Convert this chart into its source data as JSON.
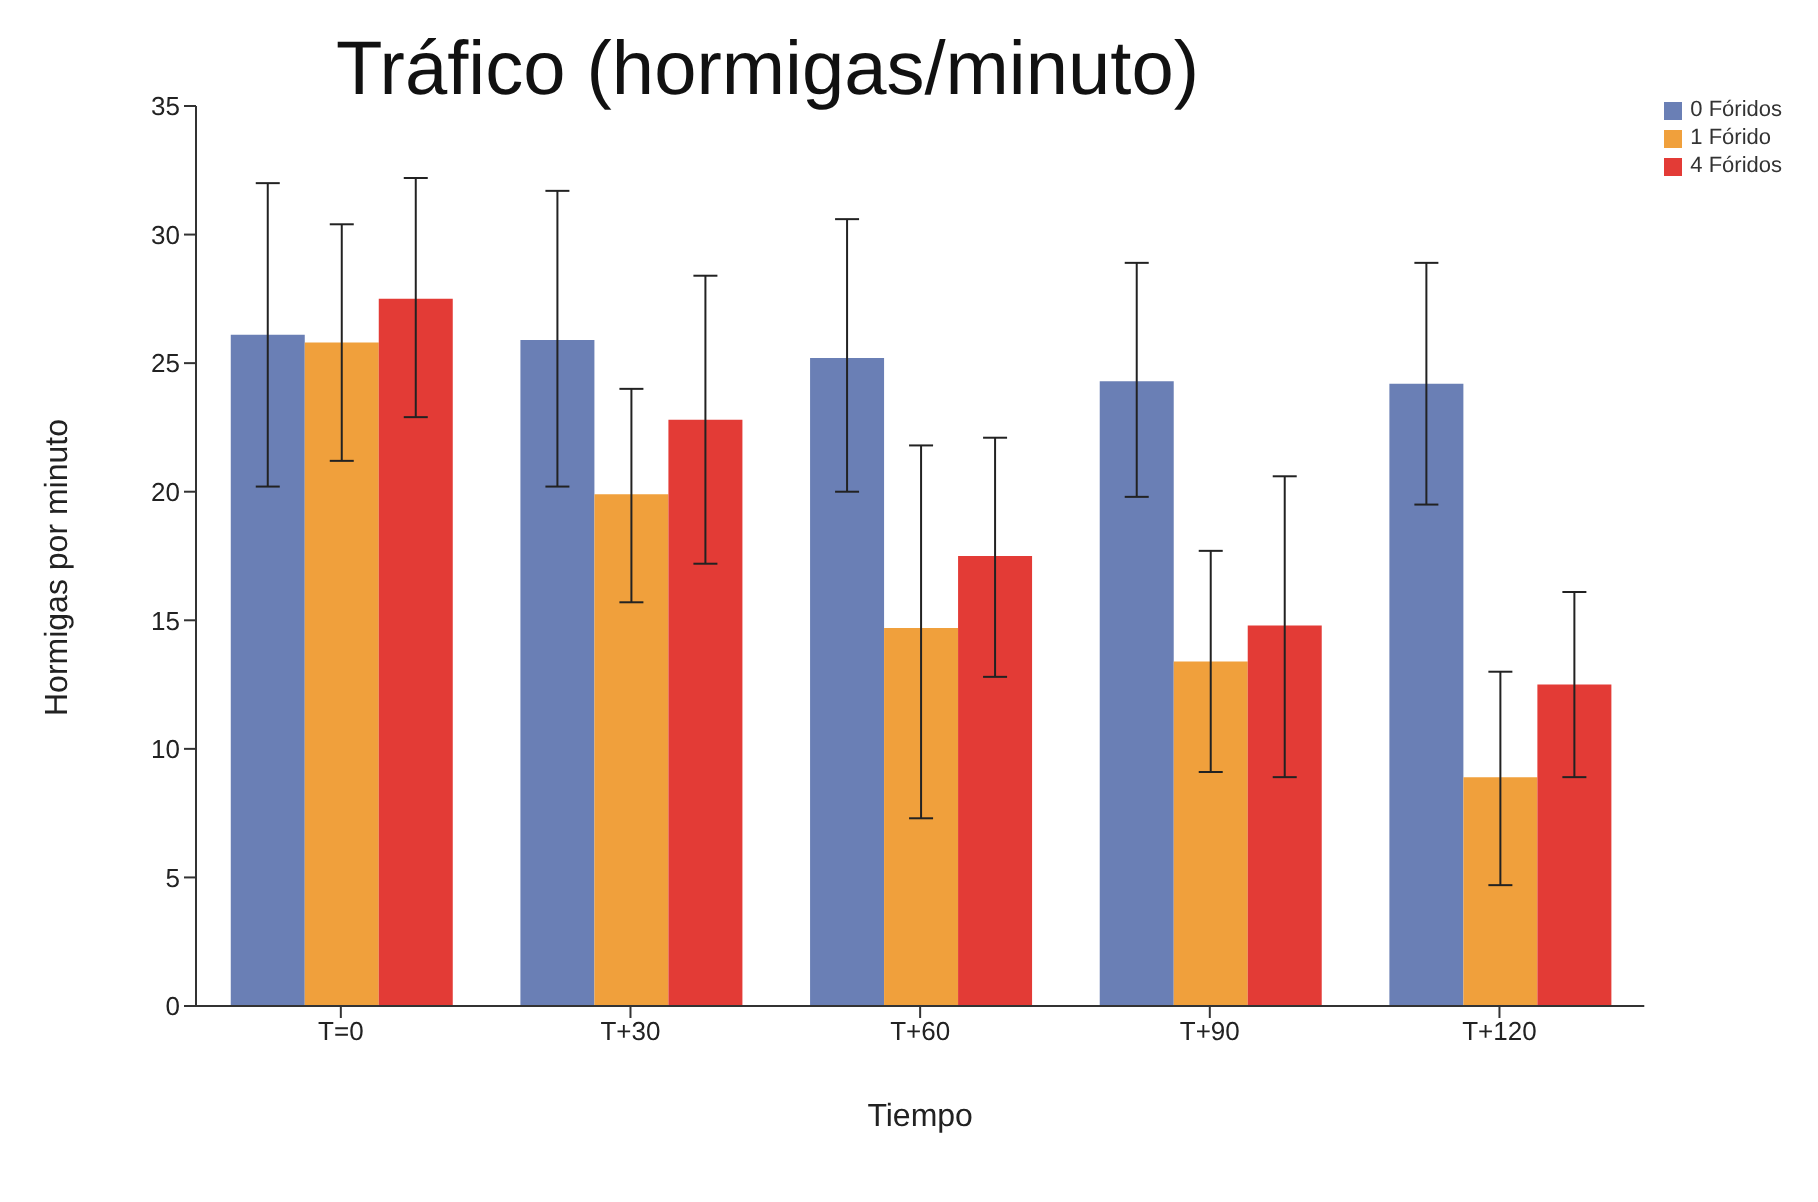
{
  "chart_data": {
    "type": "bar",
    "title": "Tráfico (hormigas/minuto)",
    "xlabel": "Tiempo",
    "ylabel": "Hormigas por minuto",
    "categories": [
      "T=0",
      "T+30",
      "T+60",
      "T+90",
      "T+120"
    ],
    "series": [
      {
        "name": "0 Fóridos",
        "color": "#6a7fb5",
        "values": [
          26.1,
          25.9,
          25.2,
          24.3,
          24.2
        ],
        "errors": [
          [
            20.2,
            32.0
          ],
          [
            20.2,
            31.7
          ],
          [
            20.0,
            30.6
          ],
          [
            19.8,
            28.9
          ],
          [
            19.5,
            28.9
          ]
        ]
      },
      {
        "name": "1 Fórido",
        "color": "#f0a03c",
        "values": [
          25.8,
          19.9,
          14.7,
          13.4,
          8.9
        ],
        "errors": [
          [
            21.2,
            30.4
          ],
          [
            15.7,
            24.0
          ],
          [
            7.3,
            21.8
          ],
          [
            9.1,
            17.7
          ],
          [
            4.7,
            13.0
          ]
        ]
      },
      {
        "name": "4 Fóridos",
        "color": "#e33b36",
        "values": [
          27.5,
          22.8,
          17.5,
          14.8,
          12.5
        ],
        "errors": [
          [
            22.9,
            32.2
          ],
          [
            17.2,
            28.4
          ],
          [
            12.8,
            22.1
          ],
          [
            8.9,
            20.6
          ],
          [
            8.9,
            16.1
          ]
        ]
      }
    ],
    "ylim": [
      0,
      35
    ],
    "yticks": [
      0,
      5,
      10,
      15,
      20,
      25,
      30,
      35
    ],
    "legend": "top right"
  }
}
